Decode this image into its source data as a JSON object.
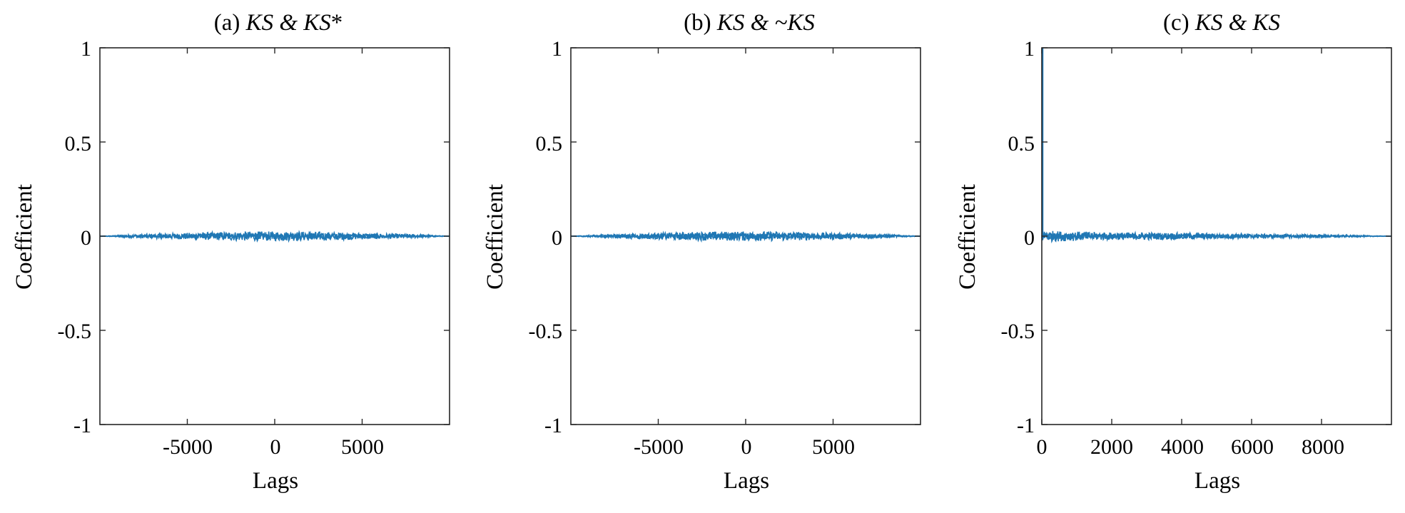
{
  "figure": {
    "panels": [
      {
        "title": {
          "prefix": "(a)",
          "emph1": "KS",
          "mid": " & ",
          "emph2": "KS",
          "suffix": "*"
        },
        "xlabel": "Lags",
        "ylabel": "Coefficient",
        "xticks": [
          "-5000",
          "0",
          "5000"
        ],
        "yticks": [
          "1",
          "0.5",
          "0",
          "-0.5",
          "-1"
        ]
      },
      {
        "title": {
          "prefix": "(b)",
          "emph1": "KS",
          "mid": " & ~",
          "emph2": "KS",
          "suffix": ""
        },
        "xlabel": "Lags",
        "ylabel": "Coefficient",
        "xticks": [
          "-5000",
          "0",
          "5000"
        ],
        "yticks": [
          "1",
          "0.5",
          "0",
          "-0.5",
          "-1"
        ]
      },
      {
        "title": {
          "prefix": "(c)",
          "emph1": "KS",
          "mid": " & ",
          "emph2": "KS",
          "suffix": ""
        },
        "xlabel": "Lags",
        "ylabel": "Coefficient",
        "xticks": [
          "0",
          "2000",
          "4000",
          "6000",
          "8000"
        ],
        "yticks": [
          "1",
          "0.5",
          "0",
          "-0.5",
          "-1"
        ]
      }
    ]
  },
  "chart_data": [
    {
      "type": "line",
      "title": "(a) KS & KS*",
      "xlabel": "Lags",
      "ylabel": "Coefficient",
      "xlim": [
        -9999,
        9999
      ],
      "ylim": [
        -1,
        1
      ],
      "xticks": [
        -5000,
        0,
        5000
      ],
      "yticks": [
        -1,
        -0.5,
        0,
        0.5,
        1
      ],
      "grid": false,
      "color": "#1f77b4",
      "series": [
        {
          "x": [
            -9999,
            -8000,
            -6000,
            -4000,
            -2000,
            0,
            2000,
            4000,
            6000,
            8000,
            9999
          ],
          "y_upper": [
            0.0,
            0.01,
            0.015,
            0.02,
            0.025,
            0.025,
            0.025,
            0.02,
            0.015,
            0.01,
            0.0
          ],
          "y_lower": [
            0.0,
            -0.01,
            -0.015,
            -0.02,
            -0.025,
            -0.025,
            -0.025,
            -0.02,
            -0.015,
            -0.01,
            0.0
          ]
        }
      ]
    },
    {
      "type": "line",
      "title": "(b) KS & ~KS",
      "xlabel": "Lags",
      "ylabel": "Coefficient",
      "xlim": [
        -9999,
        9999
      ],
      "ylim": [
        -1,
        1
      ],
      "xticks": [
        -5000,
        0,
        5000
      ],
      "yticks": [
        -1,
        -0.5,
        0,
        0.5,
        1
      ],
      "grid": false,
      "color": "#1f77b4",
      "series": [
        {
          "x": [
            -9999,
            -8000,
            -6000,
            -4000,
            -2000,
            0,
            2000,
            4000,
            6000,
            8000,
            9999
          ],
          "y_upper": [
            0.0,
            0.01,
            0.015,
            0.02,
            0.025,
            0.025,
            0.025,
            0.02,
            0.015,
            0.01,
            0.0
          ],
          "y_lower": [
            0.0,
            -0.01,
            -0.015,
            -0.02,
            -0.025,
            -0.025,
            -0.025,
            -0.02,
            -0.015,
            -0.01,
            0.0
          ]
        }
      ]
    },
    {
      "type": "line",
      "title": "(c) KS & KS",
      "xlabel": "Lags",
      "ylabel": "Coefficient",
      "xlim": [
        0,
        9999
      ],
      "ylim": [
        -1,
        1
      ],
      "xticks": [
        0,
        2000,
        4000,
        6000,
        8000
      ],
      "yticks": [
        -1,
        -0.5,
        0,
        0.5,
        1
      ],
      "grid": false,
      "color": "#1f77b4",
      "peak": {
        "x": 0,
        "y": 1
      },
      "series": [
        {
          "x": [
            0,
            1000,
            2000,
            3000,
            4000,
            5000,
            6000,
            7000,
            8000,
            9000,
            9999
          ],
          "y_upper": [
            0.03,
            0.025,
            0.02,
            0.02,
            0.018,
            0.015,
            0.012,
            0.01,
            0.008,
            0.005,
            0.0
          ],
          "y_lower": [
            -0.03,
            -0.025,
            -0.02,
            -0.02,
            -0.018,
            -0.015,
            -0.012,
            -0.01,
            -0.008,
            -0.005,
            0.0
          ]
        }
      ]
    }
  ]
}
